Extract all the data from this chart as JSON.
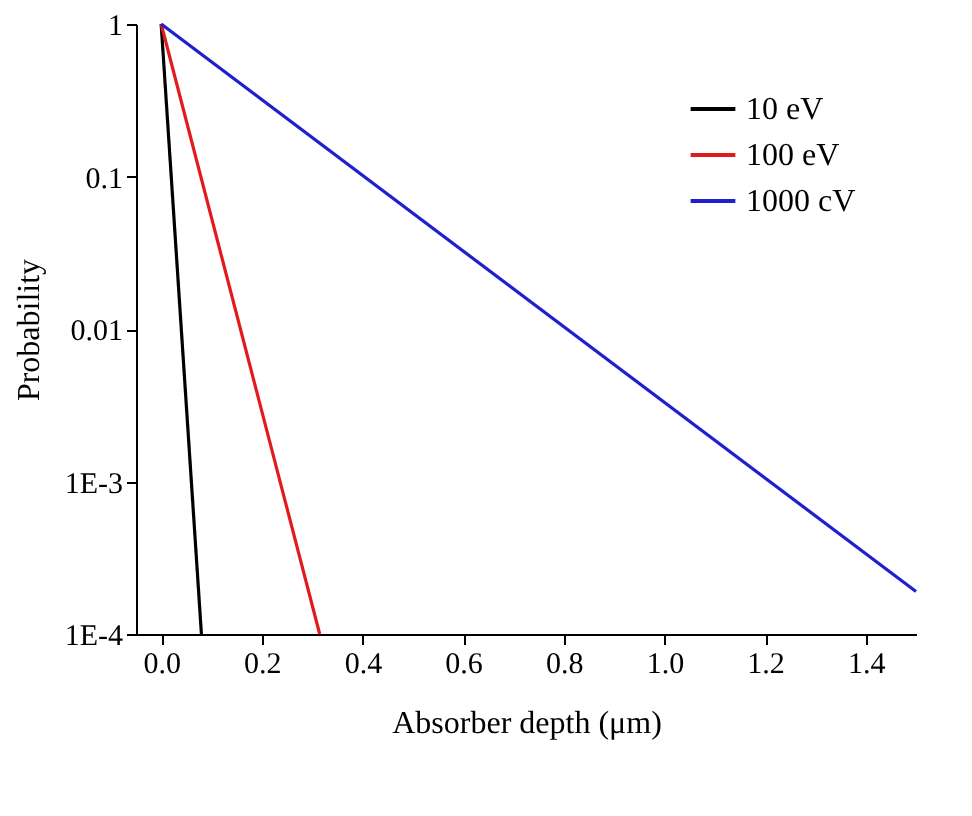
{
  "chart_data": {
    "type": "line",
    "xlabel": "Absorber depth (μm)",
    "ylabel": "Probability",
    "log": "y",
    "xlim": [
      -0.05,
      1.5
    ],
    "xticks": [
      {
        "value": 0,
        "label": "0.0"
      },
      0.2,
      0.4,
      0.6,
      0.8,
      {
        "value": 1,
        "label": "1.0"
      },
      1.2,
      1.4
    ],
    "ylim": [
      0.0001,
      1
    ],
    "yticks": [
      1,
      0.1,
      0.01,
      {
        "value": 0.001,
        "label": "1E-3"
      },
      {
        "value": 0.0001,
        "label": "1E-4"
      }
    ],
    "grid": false,
    "legend": "top right",
    "marker": "none",
    "line_style": "solid",
    "series": [
      {
        "name": "10 eV",
        "color": "#000000",
        "x": [
          0,
          0.08
        ],
        "values": [
          1,
          0.0001
        ]
      },
      {
        "name": "100 eV",
        "color": "#e31a1c",
        "x": [
          0,
          0.315
        ],
        "values": [
          1,
          0.0001
        ]
      },
      {
        "name": "1000 cV",
        "color": "#1f1fd0",
        "x": [
          0,
          1.5
        ],
        "values": [
          1,
          0.00019
        ]
      }
    ]
  }
}
